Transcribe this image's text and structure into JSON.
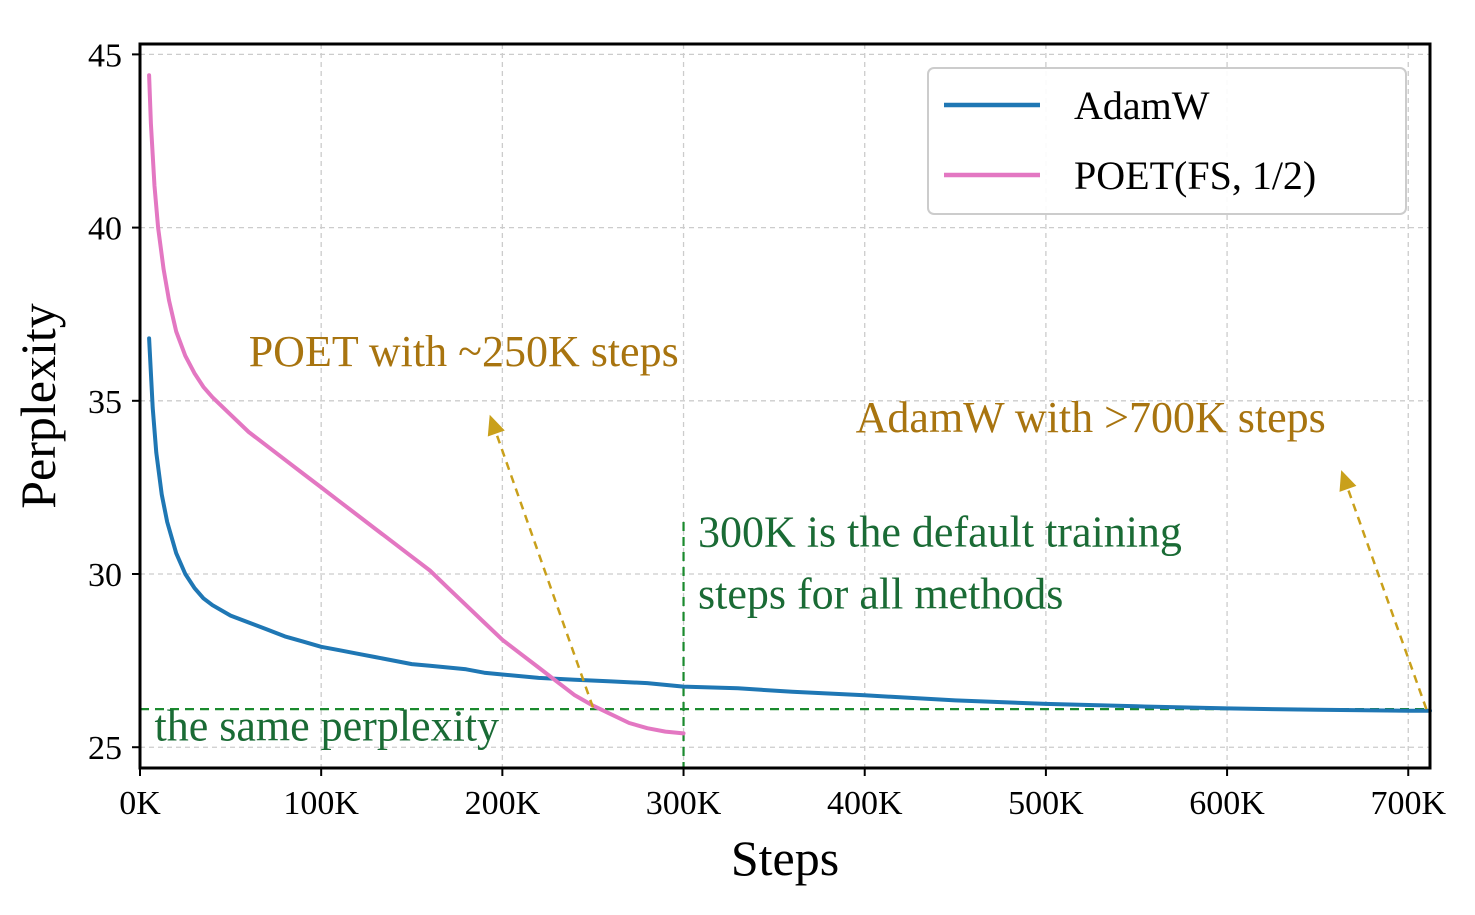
{
  "chart_data": {
    "type": "line",
    "title": "",
    "xlabel": "Steps",
    "ylabel": "Perplexity",
    "xlim": [
      0,
      712000
    ],
    "ylim": [
      24.4,
      45.3
    ],
    "xticks": [
      0,
      100000,
      200000,
      300000,
      400000,
      500000,
      600000,
      700000
    ],
    "xtick_labels": [
      "0K",
      "100K",
      "200K",
      "300K",
      "400K",
      "500K",
      "600K",
      "700K"
    ],
    "yticks": [
      25,
      30,
      35,
      40,
      45
    ],
    "ytick_labels": [
      "25",
      "30",
      "35",
      "40",
      "45"
    ],
    "grid": true,
    "legend_position": "top-right",
    "series": [
      {
        "name": "AdamW",
        "color": "#1f77b4",
        "points": [
          [
            5000,
            36.8
          ],
          [
            7000,
            34.8
          ],
          [
            9000,
            33.5
          ],
          [
            12000,
            32.3
          ],
          [
            15000,
            31.5
          ],
          [
            20000,
            30.6
          ],
          [
            25000,
            30.0
          ],
          [
            30000,
            29.6
          ],
          [
            35000,
            29.3
          ],
          [
            40000,
            29.1
          ],
          [
            50000,
            28.8
          ],
          [
            60000,
            28.6
          ],
          [
            70000,
            28.4
          ],
          [
            80000,
            28.2
          ],
          [
            90000,
            28.05
          ],
          [
            100000,
            27.9
          ],
          [
            110000,
            27.8
          ],
          [
            120000,
            27.7
          ],
          [
            130000,
            27.6
          ],
          [
            140000,
            27.5
          ],
          [
            150000,
            27.4
          ],
          [
            160000,
            27.35
          ],
          [
            170000,
            27.3
          ],
          [
            180000,
            27.25
          ],
          [
            190000,
            27.15
          ],
          [
            200000,
            27.1
          ],
          [
            220000,
            27.0
          ],
          [
            240000,
            26.95
          ],
          [
            260000,
            26.9
          ],
          [
            280000,
            26.85
          ],
          [
            300000,
            26.75
          ],
          [
            330000,
            26.7
          ],
          [
            360000,
            26.6
          ],
          [
            400000,
            26.5
          ],
          [
            450000,
            26.35
          ],
          [
            500000,
            26.25
          ],
          [
            550000,
            26.18
          ],
          [
            600000,
            26.12
          ],
          [
            650000,
            26.08
          ],
          [
            700000,
            26.05
          ],
          [
            712000,
            26.05
          ]
        ]
      },
      {
        "name": "POET(FS, 1/2)",
        "color": "#e377c2",
        "points": [
          [
            5000,
            44.4
          ],
          [
            6000,
            43.0
          ],
          [
            8000,
            41.2
          ],
          [
            10000,
            40.0
          ],
          [
            13000,
            38.8
          ],
          [
            16000,
            37.9
          ],
          [
            20000,
            37.0
          ],
          [
            25000,
            36.3
          ],
          [
            30000,
            35.8
          ],
          [
            35000,
            35.4
          ],
          [
            40000,
            35.1
          ],
          [
            50000,
            34.6
          ],
          [
            60000,
            34.1
          ],
          [
            70000,
            33.7
          ],
          [
            80000,
            33.3
          ],
          [
            90000,
            32.9
          ],
          [
            100000,
            32.5
          ],
          [
            110000,
            32.1
          ],
          [
            120000,
            31.7
          ],
          [
            130000,
            31.3
          ],
          [
            140000,
            30.9
          ],
          [
            150000,
            30.5
          ],
          [
            160000,
            30.1
          ],
          [
            170000,
            29.6
          ],
          [
            180000,
            29.1
          ],
          [
            190000,
            28.6
          ],
          [
            200000,
            28.1
          ],
          [
            210000,
            27.7
          ],
          [
            220000,
            27.3
          ],
          [
            230000,
            26.9
          ],
          [
            240000,
            26.5
          ],
          [
            250000,
            26.2
          ],
          [
            260000,
            25.95
          ],
          [
            270000,
            25.7
          ],
          [
            280000,
            25.55
          ],
          [
            290000,
            25.45
          ],
          [
            300000,
            25.4
          ]
        ]
      }
    ],
    "reference_lines": {
      "horizontal_y": 26.1,
      "vertical_x": 300000,
      "vertical_from_y": 31.5,
      "color": "#1a8a2e"
    },
    "annotations": [
      {
        "text": "POET with ~250K steps",
        "x": 60000,
        "y": 36.0,
        "color": "#a8740f",
        "arrow_from": [
          250000,
          26.15
        ],
        "arrow_to": [
          193000,
          34.6
        ]
      },
      {
        "text": "AdamW with >700K steps",
        "x": 395000,
        "y": 34.1,
        "color": "#a8740f",
        "arrow_from": [
          710000,
          26.1
        ],
        "arrow_to": [
          663000,
          33.0
        ]
      },
      {
        "text": "300K is the default training",
        "x": 308000,
        "y": 30.8,
        "color": "#1a6b35"
      },
      {
        "text": "steps for all methods",
        "x": 308000,
        "y": 29.0,
        "color": "#1a6b35"
      },
      {
        "text": "the same perplexity",
        "x": 8000,
        "y": 25.2,
        "color": "#1a6b35"
      }
    ]
  }
}
